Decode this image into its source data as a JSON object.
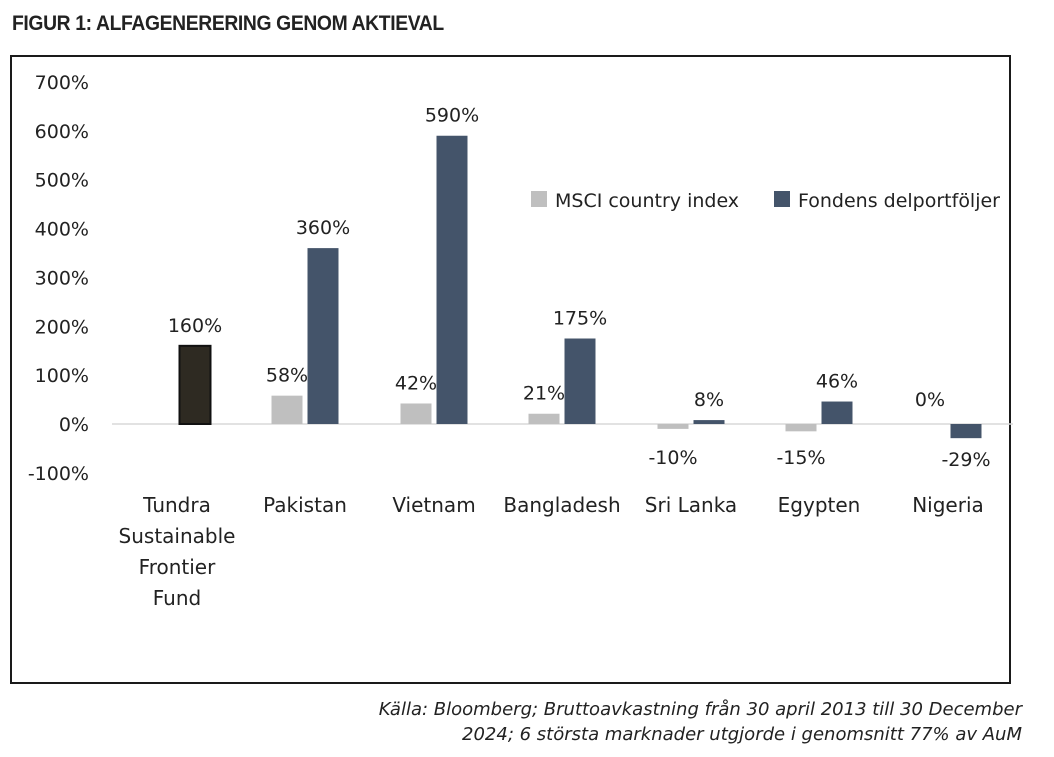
{
  "title": "FIGUR 1: ALFAGENERERING GENOM AKTIEVAL",
  "source_line1": "Källa: Bloomberg; Bruttoavkastning från 30 april 2013 till 30 December",
  "source_line2": "2024; 6 största marknader utgjorde i genomsnitt 77% av AuM",
  "chart_data": {
    "type": "bar",
    "categories": [
      [
        "Tundra",
        "Sustainable",
        "Frontier",
        "Fund"
      ],
      [
        "Pakistan"
      ],
      [
        "Vietnam"
      ],
      [
        "Bangladesh"
      ],
      [
        "Sri Lanka"
      ],
      [
        "Egypten"
      ],
      [
        "Nigeria"
      ]
    ],
    "series": [
      {
        "name": "MSCI country index",
        "color": "#bfbfbf",
        "values": [
          null,
          58,
          42,
          21,
          -10,
          -15,
          0
        ],
        "labels": [
          "",
          "58%",
          "42%",
          "21%",
          "-10%",
          "-15%",
          "0%"
        ]
      },
      {
        "name": "Fondens delportföljer",
        "color": "#44546a",
        "values": [
          160,
          360,
          590,
          175,
          8,
          46,
          -29
        ],
        "labels": [
          "160%",
          "360%",
          "590%",
          "175%",
          "8%",
          "46%",
          "-29%"
        ]
      }
    ],
    "highlight_color": "#2e2a22",
    "yticks": [
      "700%",
      "600%",
      "500%",
      "400%",
      "300%",
      "200%",
      "100%",
      "0%",
      "-100%"
    ],
    "ylim": [
      -100,
      700
    ],
    "legend_position": "top-right",
    "grid": false
  }
}
